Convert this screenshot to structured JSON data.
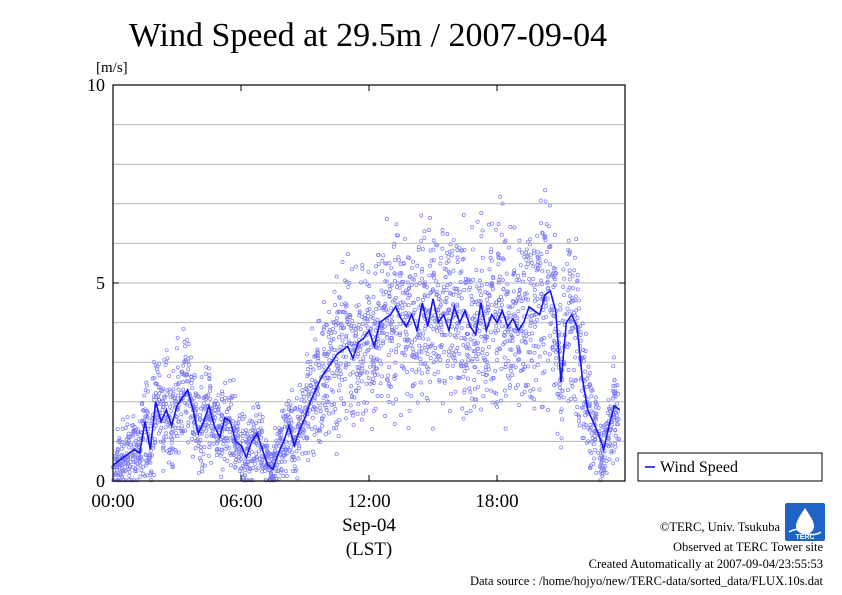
{
  "chart_data": {
    "type": "scatter",
    "title": "Wind Speed at 29.5m / 2007-09-04",
    "unit_label": "[m/s]",
    "ylim": [
      0,
      10
    ],
    "yticks": [
      0,
      5,
      10
    ],
    "ygrid": [
      1,
      2,
      3,
      4,
      5,
      6,
      7,
      8,
      9
    ],
    "xlim": [
      0,
      24
    ],
    "xticks": [
      {
        "value": 0,
        "label": "00:00"
      },
      {
        "value": 6,
        "label": "06:00"
      },
      {
        "value": 12,
        "label": "12:00"
      },
      {
        "value": 18,
        "label": "18:00"
      }
    ],
    "xlabel_date": "Sep-04",
    "xlabel_zone": "(LST)",
    "grid": true,
    "legend": {
      "position": "right",
      "entries": [
        "Wind Speed"
      ]
    },
    "series": [
      {
        "name": "Wind Speed",
        "color": "#1515ee",
        "scatter_color": "#7a7af5",
        "x": [
          0.0,
          0.25,
          0.5,
          0.75,
          1.0,
          1.25,
          1.5,
          1.75,
          2.0,
          2.25,
          2.5,
          2.75,
          3.0,
          3.25,
          3.5,
          3.75,
          4.0,
          4.25,
          4.5,
          4.75,
          5.0,
          5.25,
          5.5,
          5.75,
          6.0,
          6.25,
          6.5,
          6.75,
          7.0,
          7.25,
          7.5,
          7.75,
          8.0,
          8.25,
          8.5,
          8.75,
          9.0,
          9.25,
          9.5,
          9.75,
          10.0,
          10.25,
          10.5,
          10.75,
          11.0,
          11.25,
          11.5,
          11.75,
          12.0,
          12.25,
          12.5,
          12.75,
          13.0,
          13.25,
          13.5,
          13.75,
          14.0,
          14.25,
          14.5,
          14.75,
          15.0,
          15.25,
          15.5,
          15.75,
          16.0,
          16.25,
          16.5,
          16.75,
          17.0,
          17.25,
          17.5,
          17.75,
          18.0,
          18.25,
          18.5,
          18.75,
          19.0,
          19.25,
          19.5,
          19.75,
          20.0,
          20.25,
          20.5,
          20.75,
          21.0,
          21.25,
          21.5,
          21.75,
          22.0,
          22.25,
          22.5,
          22.75,
          23.0,
          23.25,
          23.5,
          23.75
        ],
        "values": [
          0.4,
          0.5,
          0.6,
          0.7,
          0.8,
          0.7,
          1.5,
          0.8,
          2.0,
          1.5,
          1.8,
          1.4,
          1.9,
          2.1,
          2.3,
          1.8,
          1.2,
          1.5,
          1.9,
          1.4,
          1.1,
          1.6,
          1.5,
          1.0,
          0.9,
          0.6,
          1.0,
          1.2,
          0.8,
          0.4,
          0.3,
          0.7,
          1.0,
          1.4,
          0.9,
          1.3,
          1.6,
          2.0,
          2.3,
          2.6,
          2.8,
          3.0,
          3.2,
          3.3,
          3.4,
          3.1,
          3.5,
          3.6,
          3.8,
          3.4,
          4.0,
          4.1,
          4.2,
          4.4,
          4.1,
          3.9,
          4.2,
          3.8,
          4.5,
          3.9,
          4.6,
          4.0,
          4.2,
          3.8,
          4.4,
          4.0,
          4.3,
          3.9,
          3.7,
          4.5,
          3.8,
          4.2,
          4.0,
          4.3,
          3.9,
          4.1,
          3.8,
          4.0,
          4.4,
          4.3,
          4.2,
          4.7,
          4.8,
          4.3,
          2.5,
          4.0,
          4.2,
          3.9,
          2.6,
          1.8,
          1.5,
          1.2,
          0.8,
          1.4,
          1.9,
          1.8
        ]
      }
    ]
  },
  "credits": {
    "copyright": "©TERC, Univ. Tsukuba",
    "observed": "Observed at TERC Tower site",
    "created": "Created Automatically at 2007-09-04/23:55:53",
    "source": "Data source : /home/hojyo/new/TERC-data/sorted_data/FLUX.10s.dat",
    "logo_text": "TERC"
  }
}
